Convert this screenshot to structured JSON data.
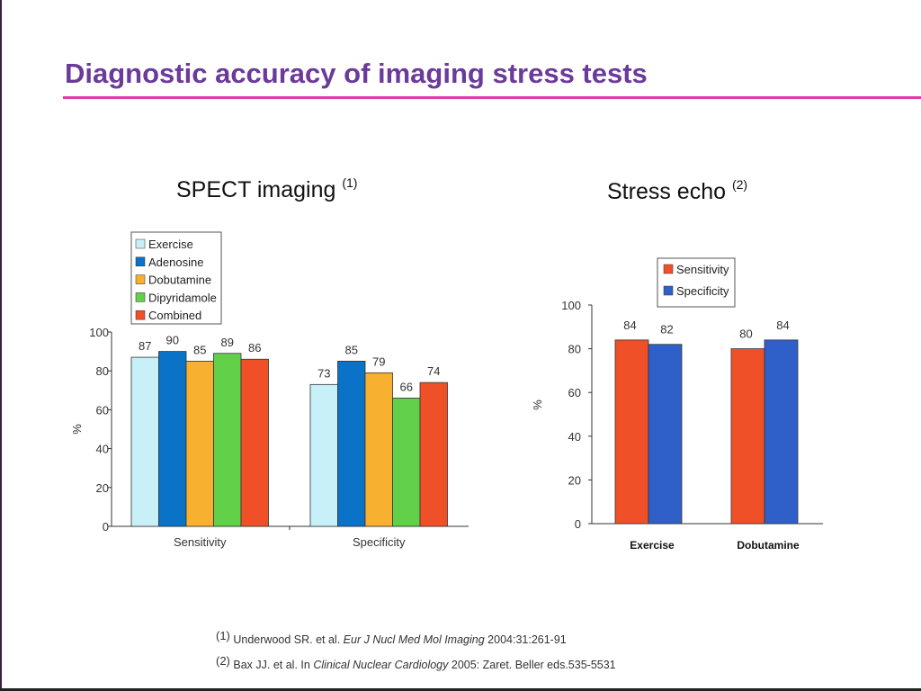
{
  "slide": {
    "title": "Diagnostic accuracy of imaging stress tests"
  },
  "spect": {
    "subtitle": "SPECT imaging",
    "ref_marker": "(1)"
  },
  "echo": {
    "subtitle": "Stress echo",
    "ref_marker": "(2)"
  },
  "references": [
    {
      "marker": "(1)",
      "authors": "Underwood SR. et al.",
      "journal": "Eur J Nucl Med Mol Imaging",
      "details": "2004:31:261-91"
    },
    {
      "marker": "(2)",
      "authors": "Bax JJ. et al. In",
      "journal": "Clinical Nuclear Cardiology",
      "details": "2005: Zaret. Beller eds.535-5531"
    }
  ],
  "chart_data": [
    {
      "type": "bar",
      "title": "SPECT imaging (1)",
      "categories": [
        "Sensitivity",
        "Specificity"
      ],
      "series": [
        {
          "name": "Exercise",
          "values": [
            87,
            73
          ],
          "color": "#c8f0f8"
        },
        {
          "name": "Adenosine",
          "values": [
            90,
            85
          ],
          "color": "#0a73c8"
        },
        {
          "name": "Dobutamine",
          "values": [
            85,
            79
          ],
          "color": "#f8b030"
        },
        {
          "name": "Dipyridamole",
          "values": [
            89,
            66
          ],
          "color": "#62d048"
        },
        {
          "name": "Combined",
          "values": [
            86,
            74
          ],
          "color": "#f05028"
        }
      ],
      "ylabel": "%",
      "ylim": [
        0,
        100
      ],
      "yticks": [
        0,
        20,
        40,
        60,
        80,
        100
      ],
      "legend": "top-left",
      "grid": false
    },
    {
      "type": "bar",
      "title": "Stress echo (2)",
      "categories": [
        "Exercise",
        "Dobutamine"
      ],
      "series": [
        {
          "name": "Sensitivity",
          "values": [
            84,
            80
          ],
          "color": "#f05028"
        },
        {
          "name": "Specificity",
          "values": [
            82,
            84
          ],
          "color": "#2f5fc8"
        }
      ],
      "ylabel": "%",
      "ylim": [
        0,
        100
      ],
      "yticks": [
        0,
        20,
        40,
        60,
        80,
        100
      ],
      "legend": "top-center",
      "grid": false
    }
  ]
}
